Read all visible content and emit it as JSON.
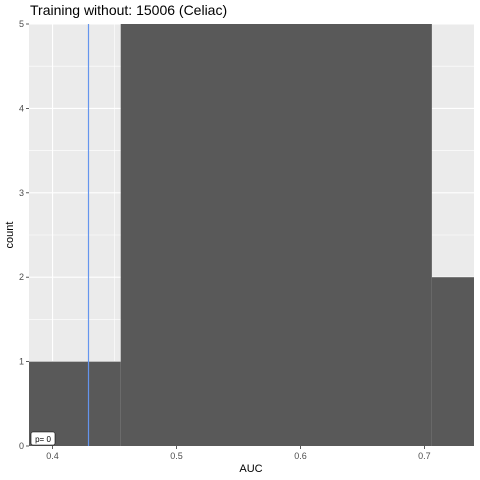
{
  "chart_data": {
    "type": "bar",
    "title": "Training without: 15006 (Celiac)",
    "xlabel": "AUC",
    "ylabel": "count",
    "xlim": [
      0.381,
      0.74
    ],
    "ylim": [
      0,
      5
    ],
    "x_ticks": [
      "0.4",
      "0.5",
      "0.6",
      "0.7"
    ],
    "y_ticks": [
      "0",
      "1",
      "2",
      "3",
      "4",
      "5"
    ],
    "bins": [
      {
        "start": 0.381,
        "end": 0.455,
        "count": 1
      },
      {
        "start": 0.455,
        "end": 0.706,
        "count": 5
      },
      {
        "start": 0.706,
        "end": 0.74,
        "count": 2
      }
    ],
    "reference_line": {
      "x": 0.429,
      "color": "#6495ED"
    },
    "annotation": "p= 0",
    "panel_color": "#EBEBEB",
    "bar_color": "#595959",
    "grid": true
  }
}
